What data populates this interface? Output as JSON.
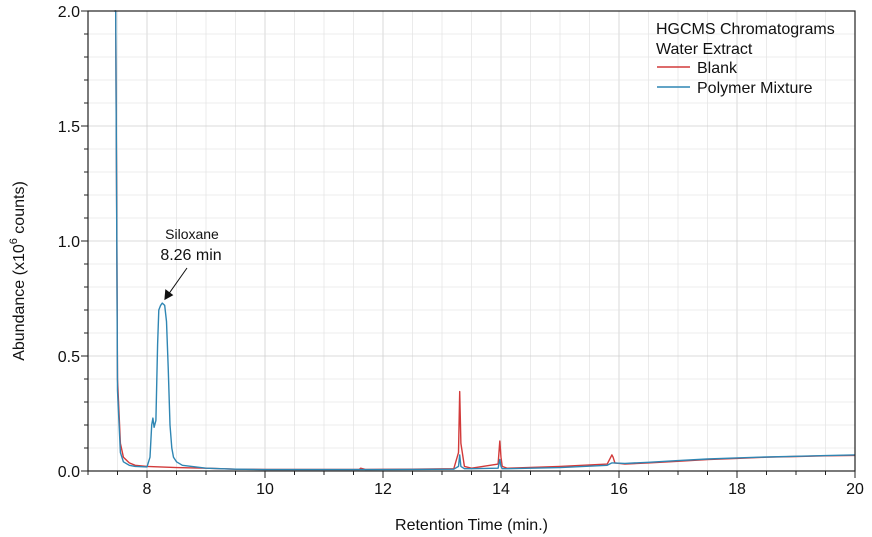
{
  "chart_data": {
    "type": "line",
    "title": "HGCMS Chromatograms",
    "subtitle": "Water Extract",
    "xlabel": "Retention Time (min.)",
    "ylabel": "Abundance (x10",
    "ylabel_sup": "6",
    "ylabel_suffix": " counts)",
    "xlim": [
      7,
      20
    ],
    "ylim": [
      0,
      2.0
    ],
    "x_ticks": [
      8,
      10,
      12,
      14,
      16,
      18,
      20
    ],
    "x_tick_labels": [
      "8",
      "10",
      "12",
      "14",
      "16",
      "18",
      "20"
    ],
    "y_ticks": [
      0,
      0.5,
      1.0,
      1.5,
      2.0
    ],
    "y_tick_labels": [
      "0.0",
      "0.5",
      "1.0",
      "1.5",
      "2.0"
    ],
    "grid": true,
    "legend_position": "top-right",
    "annotation": {
      "label": "Siloxane",
      "value_label": "8.26 min",
      "x": 8.26,
      "y": 0.73
    },
    "series": [
      {
        "name": "Blank",
        "color": "#d23a3a",
        "x": [
          7.45,
          7.47,
          7.5,
          7.55,
          7.6,
          7.7,
          7.8,
          8.0,
          8.5,
          9.0,
          9.5,
          10.0,
          11.0,
          11.6,
          11.62,
          11.7,
          12.5,
          13.2,
          13.28,
          13.3,
          13.32,
          13.38,
          13.5,
          13.95,
          13.98,
          14.0,
          14.02,
          14.1,
          15.0,
          15.8,
          15.88,
          15.9,
          15.93,
          16.1,
          16.5,
          17.0,
          17.5,
          18.0,
          18.5,
          19.0,
          19.5,
          20.0
        ],
        "y": [
          2.0,
          2.0,
          0.4,
          0.12,
          0.06,
          0.035,
          0.025,
          0.02,
          0.015,
          0.012,
          0.008,
          0.007,
          0.007,
          0.007,
          0.012,
          0.007,
          0.008,
          0.01,
          0.08,
          0.345,
          0.12,
          0.02,
          0.012,
          0.03,
          0.13,
          0.06,
          0.02,
          0.012,
          0.02,
          0.03,
          0.07,
          0.06,
          0.035,
          0.03,
          0.035,
          0.042,
          0.05,
          0.055,
          0.06,
          0.063,
          0.066,
          0.068
        ]
      },
      {
        "name": "Polymer Mixture",
        "color": "#2f86b3",
        "x": [
          7.45,
          7.47,
          7.5,
          7.55,
          7.6,
          7.7,
          7.8,
          8.0,
          8.05,
          8.08,
          8.1,
          8.12,
          8.15,
          8.18,
          8.2,
          8.23,
          8.26,
          8.3,
          8.33,
          8.36,
          8.39,
          8.42,
          8.45,
          8.5,
          8.6,
          9.0,
          9.5,
          10.0,
          11.0,
          11.6,
          12.5,
          13.2,
          13.28,
          13.3,
          13.32,
          13.38,
          13.5,
          13.95,
          13.98,
          14.0,
          14.02,
          14.1,
          15.0,
          15.8,
          15.88,
          15.9,
          16.1,
          16.5,
          17.0,
          17.5,
          18.0,
          18.5,
          19.0,
          19.5,
          20.0
        ],
        "y": [
          2.0,
          2.0,
          0.35,
          0.08,
          0.04,
          0.025,
          0.02,
          0.018,
          0.06,
          0.2,
          0.23,
          0.19,
          0.22,
          0.55,
          0.7,
          0.72,
          0.73,
          0.72,
          0.65,
          0.45,
          0.2,
          0.1,
          0.06,
          0.04,
          0.025,
          0.012,
          0.008,
          0.006,
          0.006,
          0.006,
          0.007,
          0.008,
          0.02,
          0.07,
          0.02,
          0.01,
          0.01,
          0.012,
          0.05,
          0.02,
          0.01,
          0.01,
          0.015,
          0.025,
          0.035,
          0.035,
          0.033,
          0.038,
          0.045,
          0.052,
          0.057,
          0.061,
          0.064,
          0.067,
          0.07
        ]
      }
    ]
  }
}
